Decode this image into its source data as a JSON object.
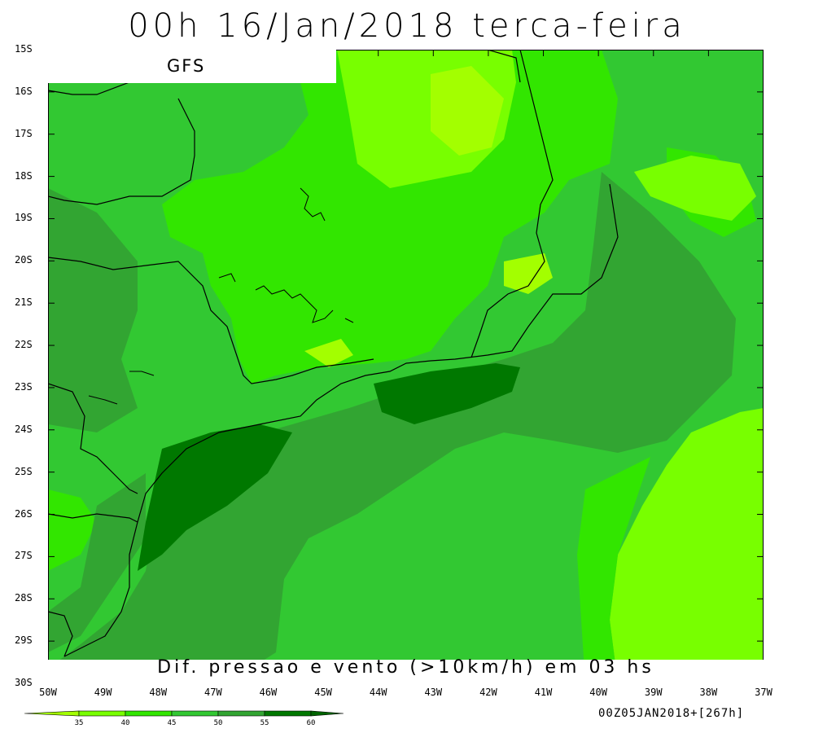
{
  "title": "00h 16/Jan/2018 terca-feira",
  "model_label": "GFS",
  "caption": "Dif. pressao e vento (>10km/h) em 03 hs",
  "run_info": "00Z05JAN2018+[267h]",
  "lat_labels": [
    "15S",
    "16S",
    "17S",
    "18S",
    "19S",
    "20S",
    "21S",
    "22S",
    "23S",
    "24S",
    "25S",
    "26S",
    "27S",
    "28S",
    "29S",
    "30S"
  ],
  "lon_labels": [
    "50W",
    "49W",
    "48W",
    "47W",
    "46W",
    "45W",
    "44W",
    "43W",
    "42W",
    "41W",
    "40W",
    "39W",
    "38W",
    "37W"
  ],
  "colorbar": {
    "ticks": [
      "35",
      "40",
      "45",
      "50",
      "55",
      "60"
    ],
    "colors": [
      "#a3ff00",
      "#78ff00",
      "#32e600",
      "#32c832",
      "#32a532",
      "#007800",
      "#006400"
    ]
  },
  "palette": {
    "lightest": "#a3ff00",
    "light": "#78ff00",
    "bright": "#32e600",
    "mid": "#32c832",
    "dark": "#32a532",
    "darkest": "#007800"
  },
  "map_extent": {
    "lon_min": -50,
    "lon_max": -37,
    "lat_min": -30,
    "lat_max": -15
  }
}
